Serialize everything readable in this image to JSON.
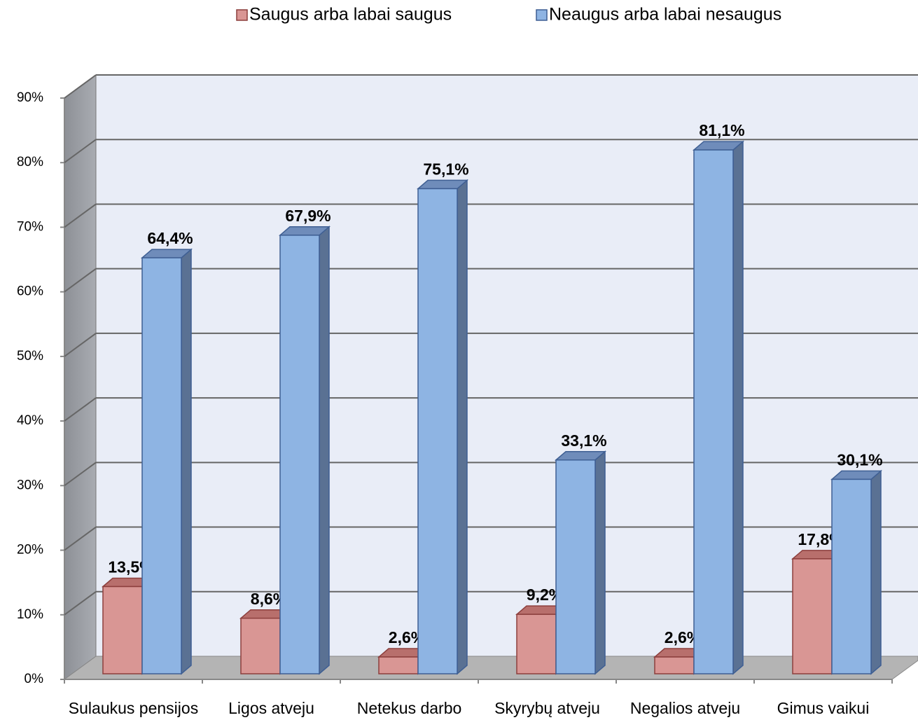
{
  "chart_data": {
    "type": "bar3d",
    "categories": [
      "Sulaukus pensijos",
      "Ligos atveju",
      "Netekus darbo",
      "Skyrybų atveju",
      "Negalios atveju",
      "Gimus vaikui"
    ],
    "series": [
      {
        "name": "Saugus arba labai saugus",
        "color": "#d99694",
        "values": [
          13.5,
          8.6,
          2.6,
          9.2,
          2.6,
          17.8
        ],
        "value_labels": [
          "13,5%",
          "8,6%",
          "2,6%",
          "9,2%",
          "2,6%",
          "17,8%"
        ]
      },
      {
        "name": "Neaugus arba labai nesaugus",
        "color": "#8eb4e3",
        "values": [
          64.4,
          67.9,
          75.1,
          33.1,
          81.1,
          30.1
        ],
        "value_labels": [
          "64,4%",
          "67,9%",
          "75,1%",
          "33,1%",
          "81,1%",
          "30,1%"
        ]
      }
    ],
    "ylim": [
      0,
      90
    ],
    "yticks": [
      {
        "value": 0,
        "label": "0%"
      },
      {
        "value": 10,
        "label": "10%"
      },
      {
        "value": 20,
        "label": "20%"
      },
      {
        "value": 30,
        "label": "30%"
      },
      {
        "value": 40,
        "label": "40%"
      },
      {
        "value": 50,
        "label": "50%"
      },
      {
        "value": 60,
        "label": "60%"
      },
      {
        "value": 70,
        "label": "70%"
      },
      {
        "value": 80,
        "label": "80%"
      },
      {
        "value": 90,
        "label": "90%"
      }
    ],
    "grid": true,
    "legend": "top"
  }
}
